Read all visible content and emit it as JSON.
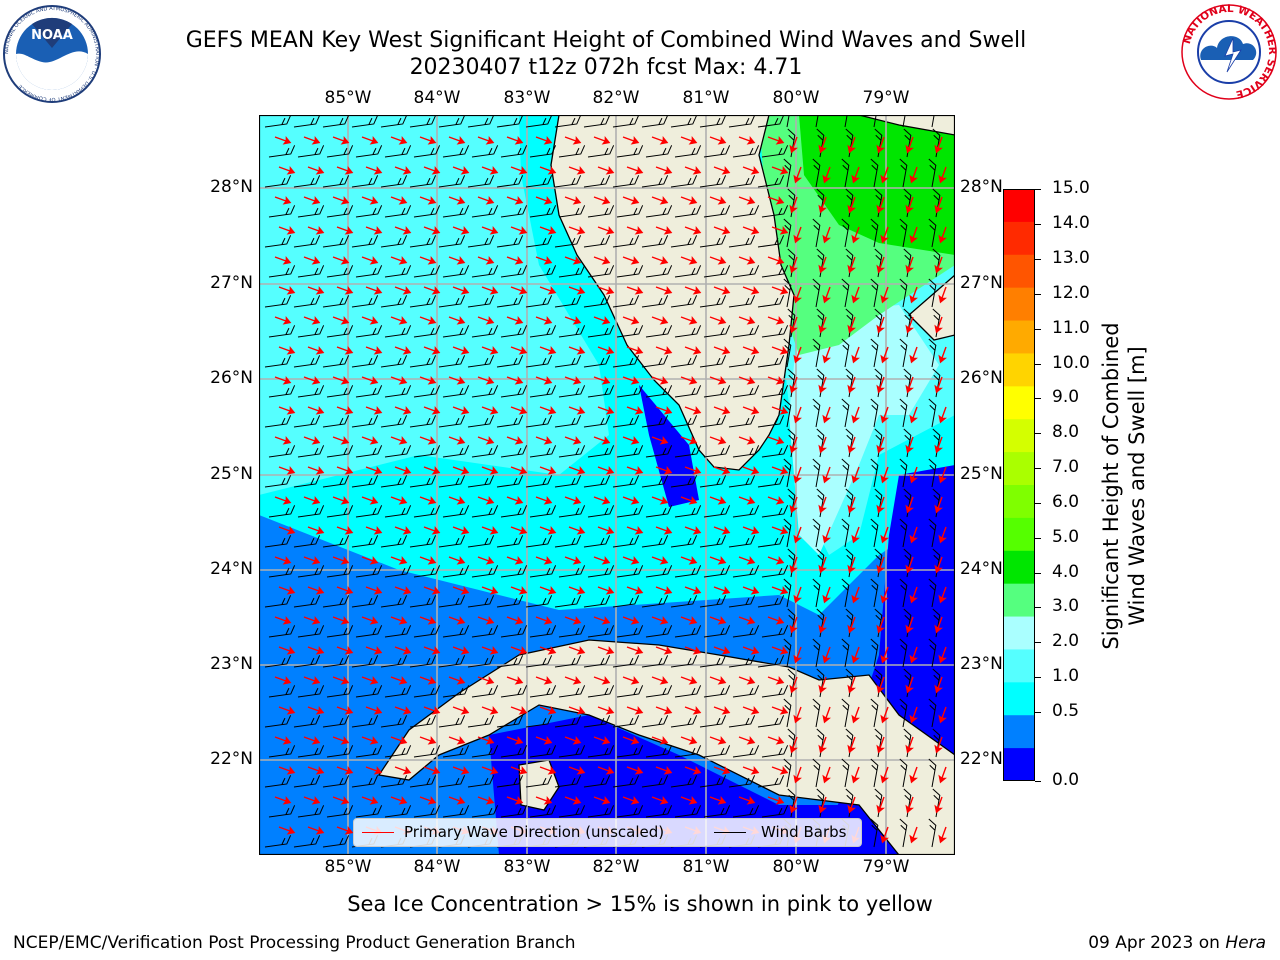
{
  "header": {
    "title_line1": "GEFS MEAN Key West Significant Height of Combined Wind Waves and Swell",
    "title_line2": "20230407 t12z 072h fcst   Max: 4.71"
  },
  "logos": {
    "left": "NOAA",
    "left_ring": "NATIONAL OCEANIC AND ATMOSPHERIC ADMINISTRATION · U.S. DEPARTMENT OF COMMERCE",
    "right_ring": "NATIONAL WEATHER SERVICE"
  },
  "map": {
    "lon_labels": [
      "85°W",
      "84°W",
      "83°W",
      "82°W",
      "81°W",
      "80°W",
      "79°W"
    ],
    "lat_labels": [
      "28°N",
      "27°N",
      "26°N",
      "25°N",
      "24°N",
      "23°N",
      "22°N"
    ],
    "land_color": "#efeedc",
    "grid_color": "#b0b0b0"
  },
  "legend": {
    "wave_label": "Primary Wave Direction (unscaled)",
    "wind_label": "Wind Barbs",
    "wave_color": "#ff0000",
    "wind_color": "#000000"
  },
  "colorbar": {
    "ticks": [
      "15.0",
      "14.0",
      "13.0",
      "12.0",
      "11.0",
      "10.0",
      "9.0",
      "8.0",
      "7.0",
      "6.0",
      "5.0",
      "4.0",
      "3.0",
      "2.0",
      "1.0",
      "0.5",
      "0.0"
    ],
    "label_line1": "Significant Height of Combined",
    "label_line2": "Wind Waves and Swell [m]",
    "colors_top_to_bottom": [
      "#ff0000",
      "#ff2a00",
      "#ff5500",
      "#ff7f00",
      "#ffaa00",
      "#ffd400",
      "#ffff00",
      "#d4ff00",
      "#aaff00",
      "#7fff00",
      "#55ff00",
      "#00e600",
      "#55ff7f",
      "#aaffff",
      "#55ffff",
      "#00ffff",
      "#0080ff",
      "#0000ff"
    ]
  },
  "footer": {
    "note": "Sea Ice Concentration > 15% is shown in pink to yellow",
    "credit_left": "NCEP/EMC/Verification Post Processing Product Generation Branch",
    "date": "09 Apr 2023 on ",
    "host": "Hera"
  }
}
